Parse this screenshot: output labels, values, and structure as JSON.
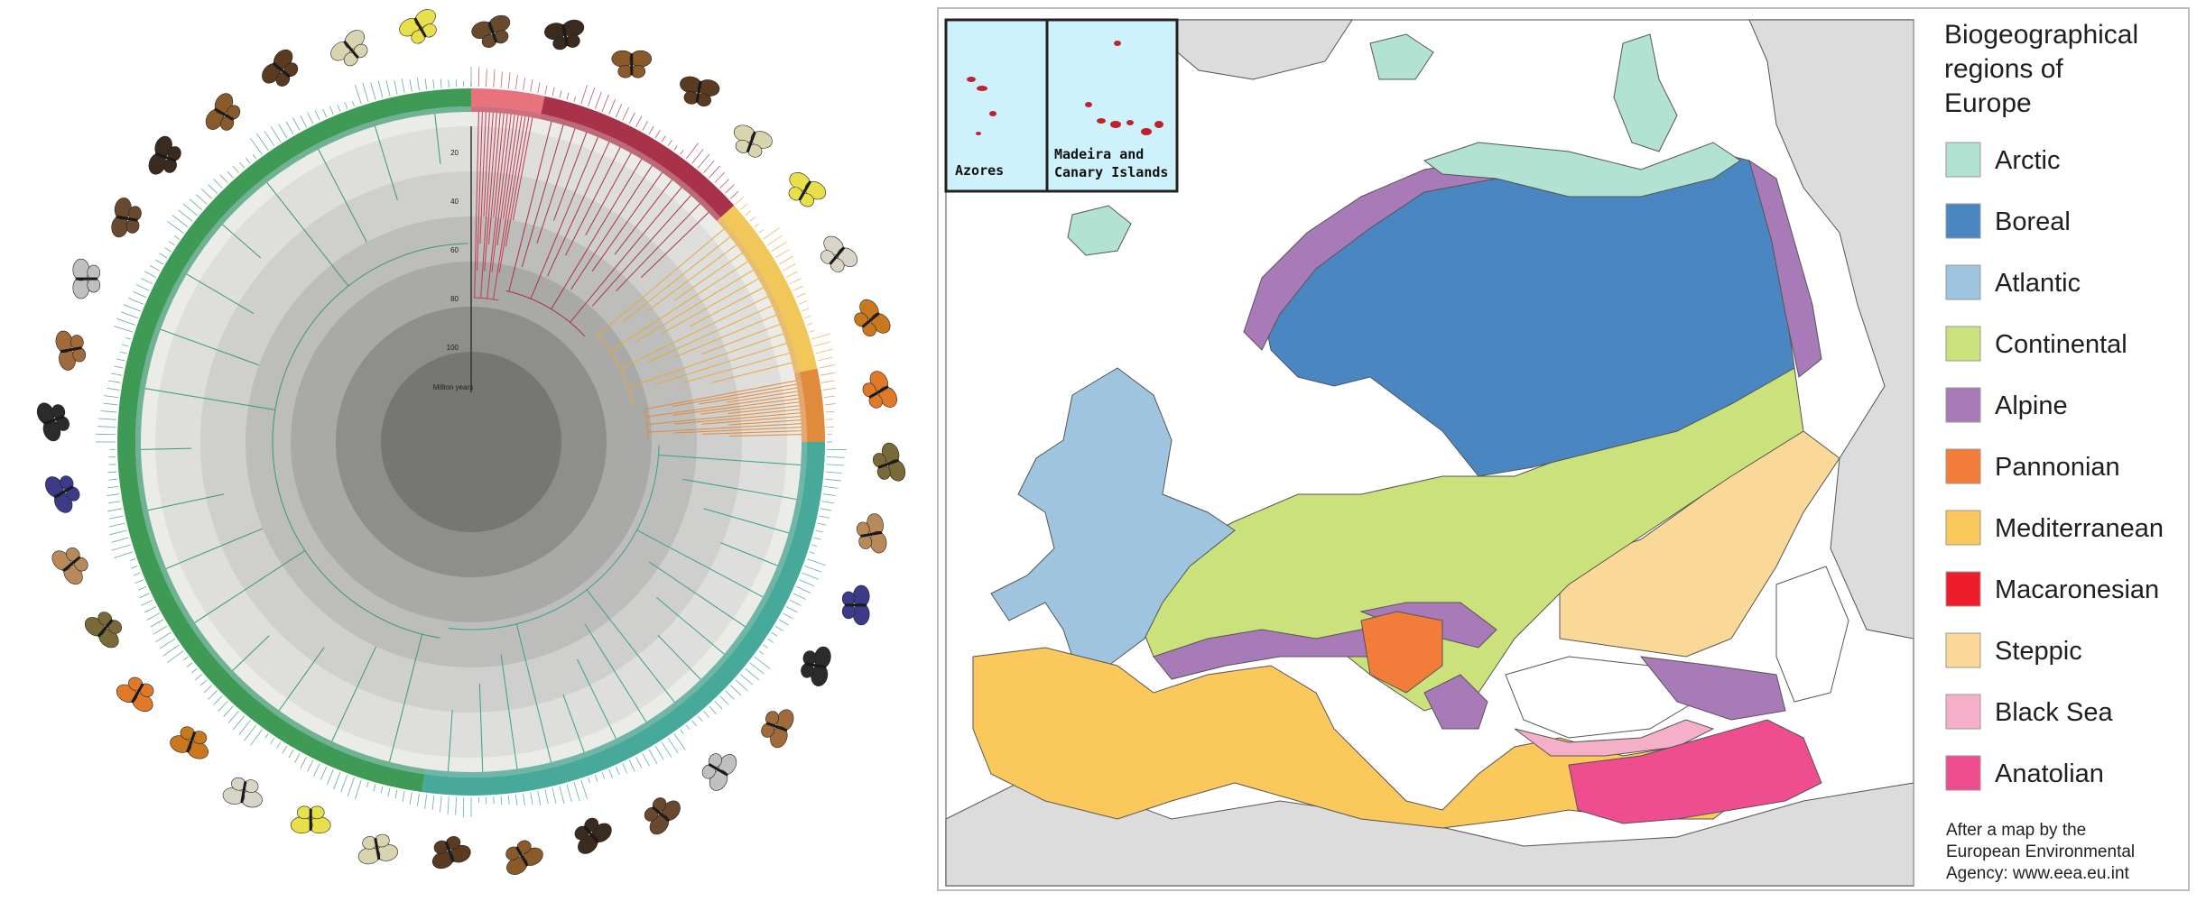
{
  "tree": {
    "axis_ticks": [
      "20",
      "40",
      "60",
      "80",
      "100"
    ],
    "axis_unit": "Million years",
    "clades": [
      {
        "color": "#e8737d",
        "branch_color": "#c23a4f"
      },
      {
        "color": "#a83249",
        "branch_color": "#a83249"
      },
      {
        "color": "#f2c75a",
        "branch_color": "#e8a93a"
      },
      {
        "color": "#e08a3c",
        "branch_color": "#e08a3c"
      },
      {
        "color": "#46a99a",
        "branch_color": "#3aa08c"
      },
      {
        "color": "#3f9a55",
        "branch_color": "#3a9a70"
      }
    ]
  },
  "map": {
    "insets": [
      {
        "label": "Azores"
      },
      {
        "label_line1": "Madeira and",
        "label_line2": "Canary Islands"
      }
    ],
    "legend": {
      "title_lines": [
        "Biogeographical",
        "regions of",
        "Europe"
      ],
      "items": [
        {
          "label": "Arctic",
          "color": "#b2e3d2"
        },
        {
          "label": "Boreal",
          "color": "#4a86c1"
        },
        {
          "label": "Atlantic",
          "color": "#9ec4df"
        },
        {
          "label": "Continental",
          "color": "#cbe27c"
        },
        {
          "label": "Alpine",
          "color": "#a87ab8"
        },
        {
          "label": "Pannonian",
          "color": "#f27d3a"
        },
        {
          "label": "Mediterranean",
          "color": "#fbc85c"
        },
        {
          "label": "Macaronesian",
          "color": "#ee1d2b"
        },
        {
          "label": "Steppic",
          "color": "#fad897"
        },
        {
          "label": "Black Sea",
          "color": "#f6afc8"
        },
        {
          "label": "Anatolian",
          "color": "#ee4d90"
        }
      ],
      "credit_lines": [
        "After a map by the",
        "European Environmental",
        "Agency: www.eea.eu.int"
      ]
    }
  }
}
